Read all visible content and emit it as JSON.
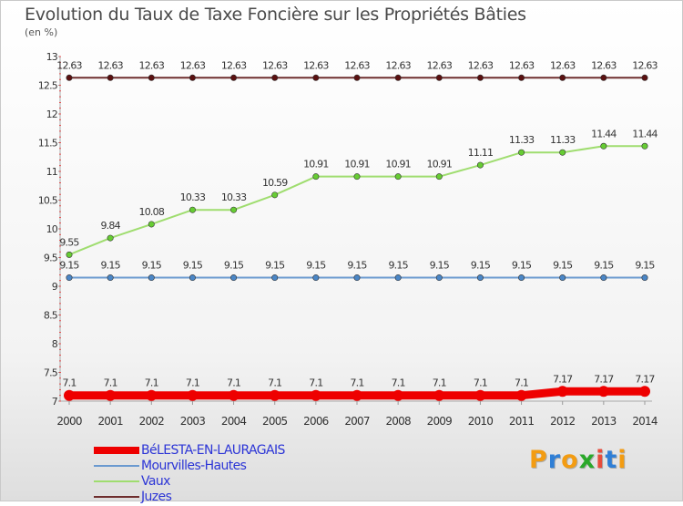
{
  "chart_data": {
    "type": "line",
    "title": "Evolution du Taux de Taxe Foncière sur les Propriétés Bâties",
    "ylabel": "(en %)",
    "xlabel": "",
    "x": [
      "2000",
      "2001",
      "2002",
      "2003",
      "2004",
      "2005",
      "2006",
      "2007",
      "2008",
      "2009",
      "2010",
      "2011",
      "2012",
      "2013",
      "2014"
    ],
    "ylim": [
      7,
      13
    ],
    "yticks": [
      7,
      7.5,
      8,
      8.5,
      9,
      9.5,
      10,
      10.5,
      11,
      11.5,
      12,
      12.5,
      13
    ],
    "ytick_labels": [
      "7",
      "7.5",
      "8",
      "8.5",
      "9",
      "9.5",
      "10",
      "10.5",
      "11",
      "11.5",
      "12",
      "12.5",
      "13"
    ],
    "grid": false,
    "legend_position": "bottom-left",
    "series": [
      {
        "name": "Juzes",
        "color": "#6e2e2e",
        "marker_color": "#5a1010",
        "values": [
          12.63,
          12.63,
          12.63,
          12.63,
          12.63,
          12.63,
          12.63,
          12.63,
          12.63,
          12.63,
          12.63,
          12.63,
          12.63,
          12.63,
          12.63
        ],
        "labels": [
          "12.63",
          "12.63",
          "12.63",
          "12.63",
          "12.63",
          "12.63",
          "12.63",
          "12.63",
          "12.63",
          "12.63",
          "12.63",
          "12.63",
          "12.63",
          "12.63",
          "12.63"
        ]
      },
      {
        "name": "Vaux",
        "color": "#9fdd6f",
        "marker_color": "#66cc33",
        "values": [
          9.55,
          9.84,
          10.08,
          10.33,
          10.33,
          10.59,
          10.91,
          10.91,
          10.91,
          10.91,
          11.11,
          11.33,
          11.33,
          11.44,
          11.44
        ],
        "labels": [
          "9.55",
          "9.84",
          "10.08",
          "10.33",
          "10.33",
          "10.59",
          "10.91",
          "10.91",
          "10.91",
          "10.91",
          "11.11",
          "11.33",
          "11.33",
          "11.44",
          "11.44"
        ]
      },
      {
        "name": "Mourvilles-Hautes",
        "color": "#6b9ad0",
        "marker_color": "#4a86c6",
        "values": [
          9.15,
          9.15,
          9.15,
          9.15,
          9.15,
          9.15,
          9.15,
          9.15,
          9.15,
          9.15,
          9.15,
          9.15,
          9.15,
          9.15,
          9.15
        ],
        "labels": [
          "9.15",
          "9.15",
          "9.15",
          "9.15",
          "9.15",
          "9.15",
          "9.15",
          "9.15",
          "9.15",
          "9.15",
          "9.15",
          "9.15",
          "9.15",
          "9.15",
          "9.15"
        ]
      },
      {
        "name": "BéLESTA-EN-LAURAGAIS",
        "color": "#ee0000",
        "marker_color": "#ee0000",
        "thick": true,
        "values": [
          7.1,
          7.1,
          7.1,
          7.1,
          7.1,
          7.1,
          7.1,
          7.1,
          7.1,
          7.1,
          7.1,
          7.1,
          7.17,
          7.17,
          7.17
        ],
        "labels": [
          "7.1",
          "7.1",
          "7.1",
          "7.1",
          "7.1",
          "7.1",
          "7.1",
          "7.1",
          "7.1",
          "7.1",
          "7.1",
          "7.1",
          "7.17",
          "7.17",
          "7.17"
        ]
      }
    ]
  },
  "legend": {
    "items": [
      {
        "label": "BéLESTA-EN-LAURAGAIS",
        "color": "#ee0000"
      },
      {
        "label": "Mourvilles-Hautes",
        "color": "#6b9ad0"
      },
      {
        "label": "Vaux",
        "color": "#9fdd6f"
      },
      {
        "label": "Juzes",
        "color": "#6e2e2e"
      }
    ]
  },
  "logo": {
    "text": "Proxiti",
    "colors": [
      "#f39c12",
      "#2f7fd6",
      "#f39c12",
      "#2aa82a",
      "#e74c3c",
      "#2f7fd6",
      "#f39c12"
    ]
  }
}
